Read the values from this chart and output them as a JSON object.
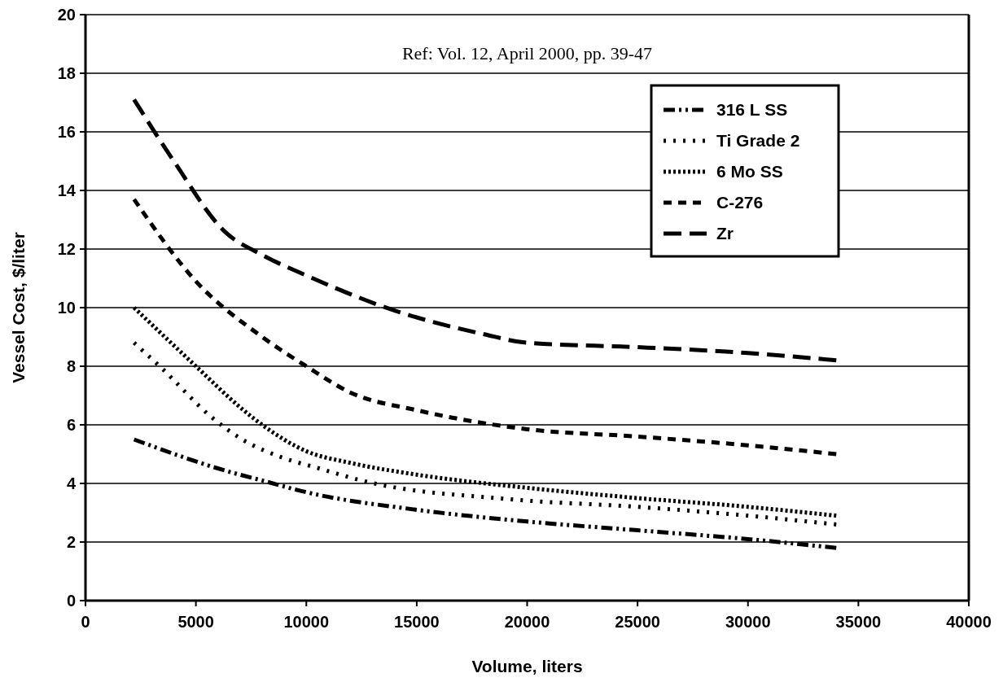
{
  "chart_data": {
    "type": "line",
    "xlabel": "Volume, liters",
    "ylabel": "Vessel Cost, $/liter",
    "annotations": [
      "Ref: Vol.  12, April 2000, pp. 39-47"
    ],
    "xlim": [
      0,
      40000
    ],
    "xticks": [
      0,
      5000,
      10000,
      15000,
      20000,
      25000,
      30000,
      35000,
      40000
    ],
    "ylim": [
      0,
      20
    ],
    "yticks": [
      0,
      2,
      4,
      6,
      8,
      10,
      12,
      14,
      16,
      18,
      20
    ],
    "grid": "y",
    "legend": "top right",
    "marker": "none",
    "series": [
      {
        "name": "316 L SS",
        "color": "#000000",
        "line_style": "dashed",
        "x": [
          2200,
          6500,
          8000,
          10000,
          15000,
          20000,
          25000,
          30000,
          34000
        ],
        "values": [
          5.5,
          4.4,
          4.1,
          3.7,
          3.1,
          2.7,
          2.4,
          2.1,
          1.8
        ]
      },
      {
        "name": "Ti Grade 2",
        "color": "#000000",
        "line_style": "dotted",
        "x": [
          2200,
          3500,
          5650,
          7100,
          8850,
          10640,
          12500,
          19400,
          25000,
          30000,
          34000
        ],
        "values": [
          8.8,
          7.9,
          6.3,
          5.5,
          4.9,
          4.5,
          4.1,
          3.45,
          3.2,
          2.9,
          2.6
        ]
      },
      {
        "name": "6 Mo SS",
        "color": "#000000",
        "line_style": "dotted",
        "x": [
          2200,
          5000,
          7000,
          8000,
          10000,
          12000,
          15000,
          20000,
          25000,
          30000,
          34000
        ],
        "values": [
          10.0,
          8.0,
          6.6,
          6.0,
          5.1,
          4.7,
          4.3,
          3.85,
          3.5,
          3.2,
          2.9
        ]
      },
      {
        "name": "C-276",
        "color": "#000000",
        "line_style": "dashed",
        "x": [
          2200,
          5000,
          8000,
          10000,
          12000,
          15000,
          20000,
          25000,
          30000,
          34000
        ],
        "values": [
          13.7,
          10.9,
          9.0,
          8.0,
          7.1,
          6.5,
          5.85,
          5.6,
          5.3,
          5.0
        ]
      },
      {
        "name": "Zr",
        "color": "#000000",
        "line_style": "dashed",
        "x": [
          2200,
          4000,
          6300,
          8000,
          10000,
          14000,
          18000,
          20000,
          25000,
          30000,
          34000
        ],
        "values": [
          17.1,
          15.0,
          12.6,
          11.8,
          11.1,
          9.9,
          9.1,
          8.8,
          8.65,
          8.45,
          8.2
        ]
      }
    ]
  }
}
